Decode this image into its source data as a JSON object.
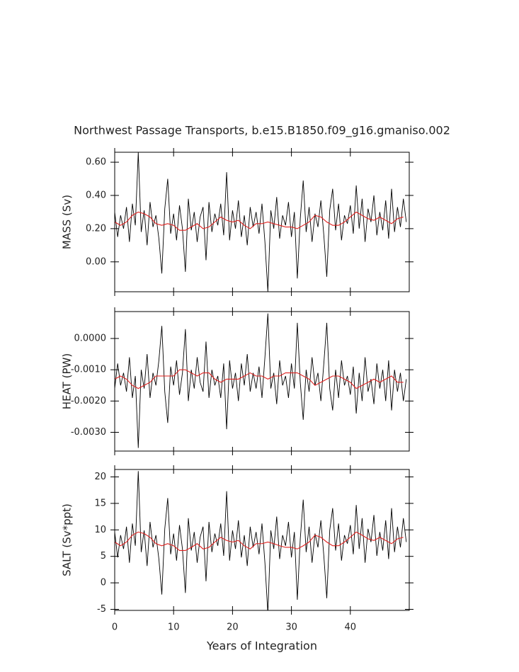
{
  "chart_data": {
    "type": "line",
    "title": "Northwest Passage Transports, b.e15.B1850.f09_g16.gmaniso.002",
    "xlabel": "Years of Integration",
    "xlim": [
      0,
      50
    ],
    "xticks": [
      0,
      10,
      20,
      30,
      40
    ],
    "x": [
      0,
      0.5,
      1,
      1.5,
      2,
      2.5,
      3,
      3.5,
      4,
      4.5,
      5,
      5.5,
      6,
      6.5,
      7,
      7.5,
      8,
      8.5,
      9,
      9.5,
      10,
      10.5,
      11,
      11.5,
      12,
      12.5,
      13,
      13.5,
      14,
      14.5,
      15,
      15.5,
      16,
      16.5,
      17,
      17.5,
      18,
      18.5,
      19,
      19.5,
      20,
      20.5,
      21,
      21.5,
      22,
      22.5,
      23,
      23.5,
      24,
      24.5,
      25,
      25.5,
      26,
      26.5,
      27,
      27.5,
      28,
      28.5,
      29,
      29.5,
      30,
      30.5,
      31,
      31.5,
      32,
      32.5,
      33,
      33.5,
      34,
      34.5,
      35,
      35.5,
      36,
      36.5,
      37,
      37.5,
      38,
      38.5,
      39,
      39.5,
      40,
      40.5,
      41,
      41.5,
      42,
      42.5,
      43,
      43.5,
      44,
      44.5,
      45,
      45.5,
      46,
      46.5,
      47,
      47.5,
      48,
      48.5,
      49,
      49.5
    ],
    "panels": [
      {
        "ylabel": "MASS (Sv)",
        "ylim": [
          -0.18,
          0.66
        ],
        "yticks": [
          {
            "value": 0,
            "label": "0.00"
          },
          {
            "value": 0.2,
            "label": "0.20"
          },
          {
            "value": 0.4,
            "label": "0.40"
          },
          {
            "value": 0.6,
            "label": "0.60"
          }
        ],
        "series": [
          {
            "color": "#000000",
            "values": [
              0.3,
              0.15,
              0.28,
              0.2,
              0.33,
              0.12,
              0.35,
              0.22,
              0.66,
              0.18,
              0.31,
              0.1,
              0.36,
              0.21,
              0.28,
              0.14,
              -0.07,
              0.32,
              0.5,
              0.17,
              0.29,
              0.13,
              0.34,
              0.2,
              -0.06,
              0.38,
              0.19,
              0.3,
              0.12,
              0.27,
              0.33,
              0.01,
              0.36,
              0.18,
              0.29,
              0.22,
              0.35,
              0.16,
              0.54,
              0.13,
              0.31,
              0.2,
              0.37,
              0.15,
              0.28,
              0.1,
              0.33,
              0.21,
              0.3,
              0.17,
              0.35,
              0.12,
              -0.18,
              0.31,
              0.2,
              0.39,
              0.14,
              0.28,
              0.22,
              0.36,
              0.15,
              0.3,
              -0.1,
              0.26,
              0.49,
              0.18,
              0.33,
              0.12,
              0.29,
              0.21,
              0.37,
              0.16,
              -0.09,
              0.31,
              0.44,
              0.19,
              0.35,
              0.13,
              0.28,
              0.23,
              0.34,
              0.17,
              0.46,
              0.2,
              0.38,
              0.12,
              0.32,
              0.24,
              0.4,
              0.16,
              0.3,
              0.19,
              0.37,
              0.14,
              0.44,
              0.18,
              0.33,
              0.21,
              0.38,
              0.24
            ]
          },
          {
            "color": "#e0201e",
            "x": [
              0,
              1,
              2,
              3,
              4,
              5,
              6,
              7,
              8,
              9,
              10,
              11,
              12,
              13,
              14,
              15,
              16,
              17,
              18,
              19,
              20,
              21,
              22,
              23,
              24,
              25,
              26,
              27,
              28,
              29,
              30,
              31,
              32,
              33,
              34,
              35,
              36,
              37,
              38,
              39,
              40,
              41,
              42,
              43,
              44,
              45,
              46,
              47,
              48,
              49
            ],
            "values": [
              0.24,
              0.22,
              0.24,
              0.28,
              0.3,
              0.29,
              0.27,
              0.23,
              0.22,
              0.23,
              0.22,
              0.19,
              0.19,
              0.21,
              0.23,
              0.2,
              0.21,
              0.24,
              0.27,
              0.25,
              0.24,
              0.25,
              0.22,
              0.2,
              0.23,
              0.23,
              0.24,
              0.23,
              0.22,
              0.21,
              0.21,
              0.2,
              0.22,
              0.24,
              0.28,
              0.27,
              0.24,
              0.22,
              0.22,
              0.24,
              0.27,
              0.3,
              0.28,
              0.26,
              0.25,
              0.27,
              0.25,
              0.23,
              0.26,
              0.27
            ]
          }
        ]
      },
      {
        "ylabel": "HEAT (PW)",
        "ylim": [
          -0.0036,
          0.00086
        ],
        "yticks": [
          {
            "value": 0,
            "label": "0.0000"
          },
          {
            "value": -0.001,
            "label": "-0.0010"
          },
          {
            "value": -0.002,
            "label": "-0.0020"
          },
          {
            "value": -0.003,
            "label": "-0.0030"
          }
        ],
        "series": [
          {
            "color": "#000000",
            "values": [
              -0.0016,
              -0.0008,
              -0.0015,
              -0.0011,
              -0.0017,
              -0.0006,
              -0.0019,
              -0.0012,
              -0.0035,
              -0.001,
              -0.0016,
              -0.0005,
              -0.0019,
              -0.0011,
              -0.0015,
              -0.0007,
              0.0004,
              -0.0017,
              -0.0027,
              -0.0009,
              -0.0015,
              -0.0007,
              -0.0018,
              -0.0011,
              0.0003,
              -0.002,
              -0.001,
              -0.0016,
              -0.0006,
              -0.0014,
              -0.0017,
              -0.0001,
              -0.0019,
              -0.001,
              -0.0015,
              -0.0012,
              -0.0019,
              -0.0008,
              -0.0029,
              -0.0007,
              -0.0016,
              -0.0011,
              -0.002,
              -0.0008,
              -0.0015,
              -0.0005,
              -0.0017,
              -0.0011,
              -0.0016,
              -0.0009,
              -0.0019,
              -0.0006,
              0.0008,
              -0.0016,
              -0.0011,
              -0.0021,
              -0.0007,
              -0.0015,
              -0.0012,
              -0.0019,
              -0.0008,
              -0.0016,
              0.0005,
              -0.0014,
              -0.0026,
              -0.001,
              -0.0017,
              -0.0006,
              -0.0015,
              -0.0011,
              -0.002,
              -0.0008,
              0.0005,
              -0.0016,
              -0.0023,
              -0.001,
              -0.0019,
              -0.0007,
              -0.0015,
              -0.0012,
              -0.0018,
              -0.0009,
              -0.0024,
              -0.0011,
              -0.002,
              -0.0006,
              -0.0017,
              -0.0013,
              -0.0021,
              -0.0008,
              -0.0016,
              -0.001,
              -0.002,
              -0.0007,
              -0.0023,
              -0.001,
              -0.0017,
              -0.0011,
              -0.002,
              -0.0013
            ]
          },
          {
            "color": "#e0201e",
            "x": [
              0,
              1,
              2,
              3,
              4,
              5,
              6,
              7,
              8,
              9,
              10,
              11,
              12,
              13,
              14,
              15,
              16,
              17,
              18,
              19,
              20,
              21,
              22,
              23,
              24,
              25,
              26,
              27,
              28,
              29,
              30,
              31,
              32,
              33,
              34,
              35,
              36,
              37,
              38,
              39,
              40,
              41,
              42,
              43,
              44,
              45,
              46,
              47,
              48,
              49
            ],
            "values": [
              -0.0013,
              -0.0012,
              -0.0013,
              -0.0015,
              -0.0016,
              -0.0015,
              -0.0014,
              -0.0012,
              -0.0012,
              -0.0012,
              -0.0012,
              -0.001,
              -0.001,
              -0.0011,
              -0.0012,
              -0.0011,
              -0.0011,
              -0.0013,
              -0.0014,
              -0.0013,
              -0.0013,
              -0.0013,
              -0.0012,
              -0.0011,
              -0.0012,
              -0.0012,
              -0.0013,
              -0.0012,
              -0.0012,
              -0.0011,
              -0.0011,
              -0.0011,
              -0.0012,
              -0.0013,
              -0.0015,
              -0.0014,
              -0.0013,
              -0.0012,
              -0.0012,
              -0.0013,
              -0.0014,
              -0.0016,
              -0.0015,
              -0.0014,
              -0.0013,
              -0.0014,
              -0.0013,
              -0.0012,
              -0.0014,
              -0.0014
            ]
          }
        ]
      },
      {
        "ylabel": "SALT (Sv*ppt)",
        "ylim": [
          -5.2,
          21.4
        ],
        "yticks": [
          -5,
          0,
          5,
          10,
          15,
          20
        ],
        "series": [
          {
            "color": "#000000",
            "values": [
              9.6,
              4.8,
              9.0,
              6.4,
              10.6,
              3.8,
              11.2,
              7.0,
              21.1,
              5.8,
              9.9,
              3.2,
              11.5,
              6.7,
              9.0,
              4.5,
              -2.2,
              10.2,
              16.0,
              5.4,
              9.3,
              4.2,
              10.9,
              6.4,
              -1.9,
              12.2,
              6.1,
              9.6,
              3.8,
              8.6,
              10.6,
              0.3,
              11.5,
              5.8,
              9.3,
              7.0,
              11.2,
              5.1,
              17.3,
              4.2,
              9.9,
              6.4,
              11.8,
              4.8,
              9.0,
              3.2,
              10.6,
              6.7,
              9.6,
              5.4,
              11.2,
              3.8,
              -5.8,
              9.9,
              6.4,
              12.5,
              4.5,
              9.0,
              7.0,
              11.5,
              4.8,
              9.6,
              -3.2,
              8.3,
              15.7,
              5.8,
              10.6,
              3.8,
              9.3,
              6.7,
              11.8,
              5.1,
              -2.9,
              9.9,
              14.1,
              6.1,
              11.2,
              4.2,
              9.0,
              7.4,
              10.9,
              5.4,
              14.7,
              6.4,
              12.2,
              3.8,
              10.2,
              7.7,
              12.8,
              5.1,
              9.6,
              6.1,
              11.8,
              4.5,
              14.1,
              5.8,
              10.6,
              6.7,
              12.2,
              7.7
            ]
          },
          {
            "color": "#e0201e",
            "x": [
              0,
              1,
              2,
              3,
              4,
              5,
              6,
              7,
              8,
              9,
              10,
              11,
              12,
              13,
              14,
              15,
              16,
              17,
              18,
              19,
              20,
              21,
              22,
              23,
              24,
              25,
              26,
              27,
              28,
              29,
              30,
              31,
              32,
              33,
              34,
              35,
              36,
              37,
              38,
              39,
              40,
              41,
              42,
              43,
              44,
              45,
              46,
              47,
              48,
              49
            ],
            "values": [
              7.7,
              7.0,
              7.7,
              9.0,
              9.6,
              9.3,
              8.6,
              7.4,
              7.0,
              7.4,
              7.0,
              6.1,
              6.1,
              6.7,
              7.4,
              6.4,
              6.7,
              7.7,
              8.6,
              8.0,
              7.7,
              8.0,
              7.0,
              6.4,
              7.4,
              7.4,
              7.7,
              7.4,
              7.0,
              6.7,
              6.7,
              6.4,
              7.0,
              7.7,
              9.0,
              8.6,
              7.7,
              7.0,
              7.0,
              7.7,
              8.6,
              9.6,
              9.0,
              8.3,
              8.0,
              8.6,
              8.0,
              7.4,
              8.3,
              8.6
            ]
          }
        ]
      }
    ]
  }
}
